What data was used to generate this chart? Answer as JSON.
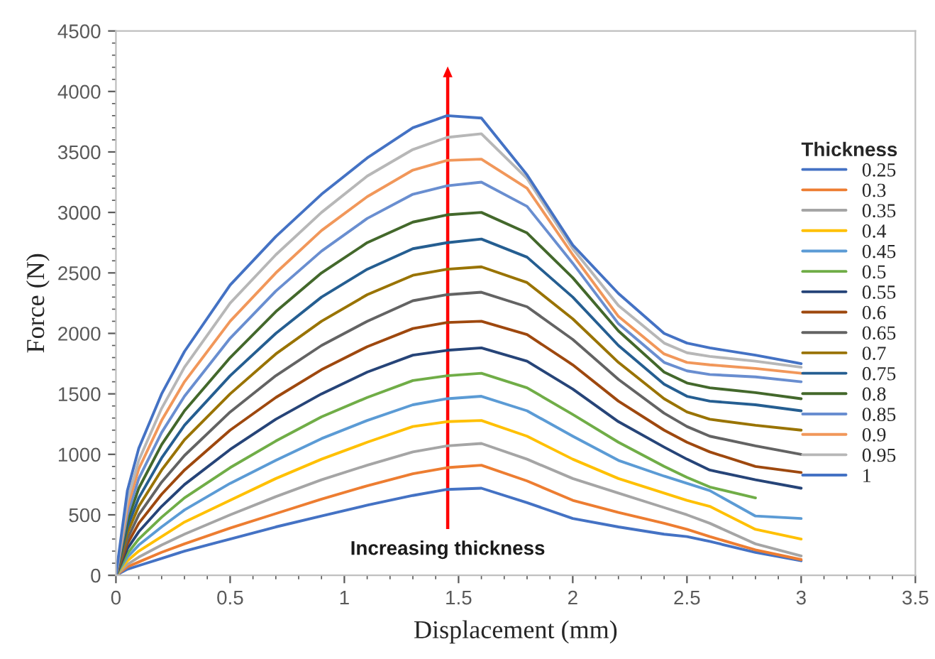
{
  "chart_data": {
    "type": "line",
    "xlabel": "Displacement (mm)",
    "ylabel": "Force (N)",
    "legend_title": "Thickness",
    "legend": "right",
    "grid": false,
    "marker": "none",
    "line_style": "solid",
    "xlim": [
      0,
      3.5
    ],
    "xticks": [
      0,
      0.5,
      1,
      1.5,
      2,
      2.5,
      3,
      3.5
    ],
    "ylim": [
      0,
      4500
    ],
    "yticks": [
      0,
      500,
      1000,
      1500,
      2000,
      2500,
      3000,
      3500,
      4000,
      4500
    ],
    "x": [
      0,
      0.05,
      0.1,
      0.2,
      0.3,
      0.5,
      0.7,
      0.9,
      1.1,
      1.3,
      1.45,
      1.6,
      1.8,
      2.0,
      2.2,
      2.4,
      2.5,
      2.6,
      2.8,
      3.0
    ],
    "series": [
      {
        "name": "0.25",
        "color": "#4472c4",
        "values": [
          0,
          50,
          80,
          140,
          200,
          300,
          400,
          490,
          580,
          660,
          710,
          720,
          600,
          470,
          400,
          340,
          320,
          280,
          190,
          120
        ]
      },
      {
        "name": "0.3",
        "color": "#ed7d31",
        "values": [
          0,
          70,
          110,
          190,
          260,
          390,
          510,
          630,
          740,
          840,
          890,
          910,
          780,
          620,
          520,
          430,
          380,
          320,
          210,
          130
        ]
      },
      {
        "name": "0.35",
        "color": "#a5a5a5",
        "values": [
          0,
          90,
          150,
          250,
          340,
          500,
          650,
          790,
          910,
          1020,
          1070,
          1090,
          960,
          800,
          680,
          560,
          500,
          430,
          260,
          160
        ]
      },
      {
        "name": "0.4",
        "color": "#ffc000",
        "values": [
          0,
          120,
          200,
          320,
          440,
          620,
          800,
          960,
          1100,
          1230,
          1270,
          1280,
          1150,
          960,
          800,
          680,
          620,
          570,
          380,
          300
        ]
      },
      {
        "name": "0.45",
        "color": "#5b9bd5",
        "values": [
          0,
          150,
          250,
          400,
          540,
          760,
          950,
          1130,
          1280,
          1410,
          1460,
          1480,
          1360,
          1150,
          950,
          820,
          760,
          700,
          490,
          470
        ]
      },
      {
        "name": "0.5",
        "color": "#70ad47",
        "values": [
          0,
          180,
          300,
          480,
          640,
          890,
          1110,
          1310,
          1470,
          1610,
          1650,
          1670,
          1550,
          1330,
          1100,
          900,
          810,
          730,
          640,
          null
        ]
      },
      {
        "name": "0.55",
        "color": "#264478",
        "values": [
          0,
          220,
          360,
          570,
          750,
          1040,
          1290,
          1500,
          1680,
          1820,
          1860,
          1880,
          1770,
          1540,
          1270,
          1060,
          960,
          870,
          790,
          720
        ]
      },
      {
        "name": "0.6",
        "color": "#9e480e",
        "values": [
          0,
          260,
          430,
          670,
          870,
          1200,
          1470,
          1700,
          1890,
          2040,
          2090,
          2100,
          1990,
          1740,
          1440,
          1200,
          1100,
          1020,
          900,
          850
        ]
      },
      {
        "name": "0.65",
        "color": "#636363",
        "values": [
          0,
          300,
          500,
          770,
          990,
          1350,
          1650,
          1900,
          2100,
          2270,
          2320,
          2340,
          2220,
          1950,
          1620,
          1340,
          1230,
          1150,
          1070,
          1000
        ]
      },
      {
        "name": "0.7",
        "color": "#997300",
        "values": [
          0,
          350,
          570,
          870,
          1120,
          1500,
          1830,
          2100,
          2320,
          2480,
          2530,
          2550,
          2420,
          2120,
          1760,
          1460,
          1350,
          1290,
          1240,
          1200
        ]
      },
      {
        "name": "0.75",
        "color": "#255e91",
        "values": [
          0,
          400,
          640,
          970,
          1240,
          1650,
          2000,
          2300,
          2530,
          2700,
          2750,
          2780,
          2630,
          2300,
          1900,
          1580,
          1480,
          1440,
          1410,
          1360
        ]
      },
      {
        "name": "0.8",
        "color": "#43682b",
        "values": [
          0,
          450,
          720,
          1080,
          1360,
          1800,
          2180,
          2500,
          2750,
          2920,
          2980,
          3000,
          2830,
          2460,
          2020,
          1680,
          1590,
          1550,
          1510,
          1460
        ]
      },
      {
        "name": "0.85",
        "color": "#698ed0",
        "values": [
          0,
          500,
          800,
          1180,
          1480,
          1960,
          2350,
          2680,
          2950,
          3150,
          3220,
          3250,
          3050,
          2580,
          2080,
          1760,
          1690,
          1660,
          1640,
          1600
        ]
      },
      {
        "name": "0.9",
        "color": "#f1975a",
        "values": [
          0,
          560,
          880,
          1280,
          1600,
          2100,
          2500,
          2850,
          3130,
          3350,
          3430,
          3440,
          3200,
          2650,
          2140,
          1830,
          1760,
          1740,
          1710,
          1670
        ]
      },
      {
        "name": "0.95",
        "color": "#b7b7b7",
        "values": [
          0,
          620,
          950,
          1380,
          1720,
          2250,
          2650,
          3000,
          3300,
          3520,
          3620,
          3650,
          3280,
          2700,
          2230,
          1920,
          1840,
          1810,
          1770,
          1720
        ]
      },
      {
        "name": "1",
        "color": "#4472c4",
        "values": [
          0,
          700,
          1050,
          1500,
          1850,
          2400,
          2800,
          3150,
          3450,
          3700,
          3800,
          3780,
          3310,
          2730,
          2330,
          2000,
          1920,
          1880,
          1820,
          1750
        ]
      }
    ],
    "annotations": [
      "Increasing thickness"
    ]
  }
}
